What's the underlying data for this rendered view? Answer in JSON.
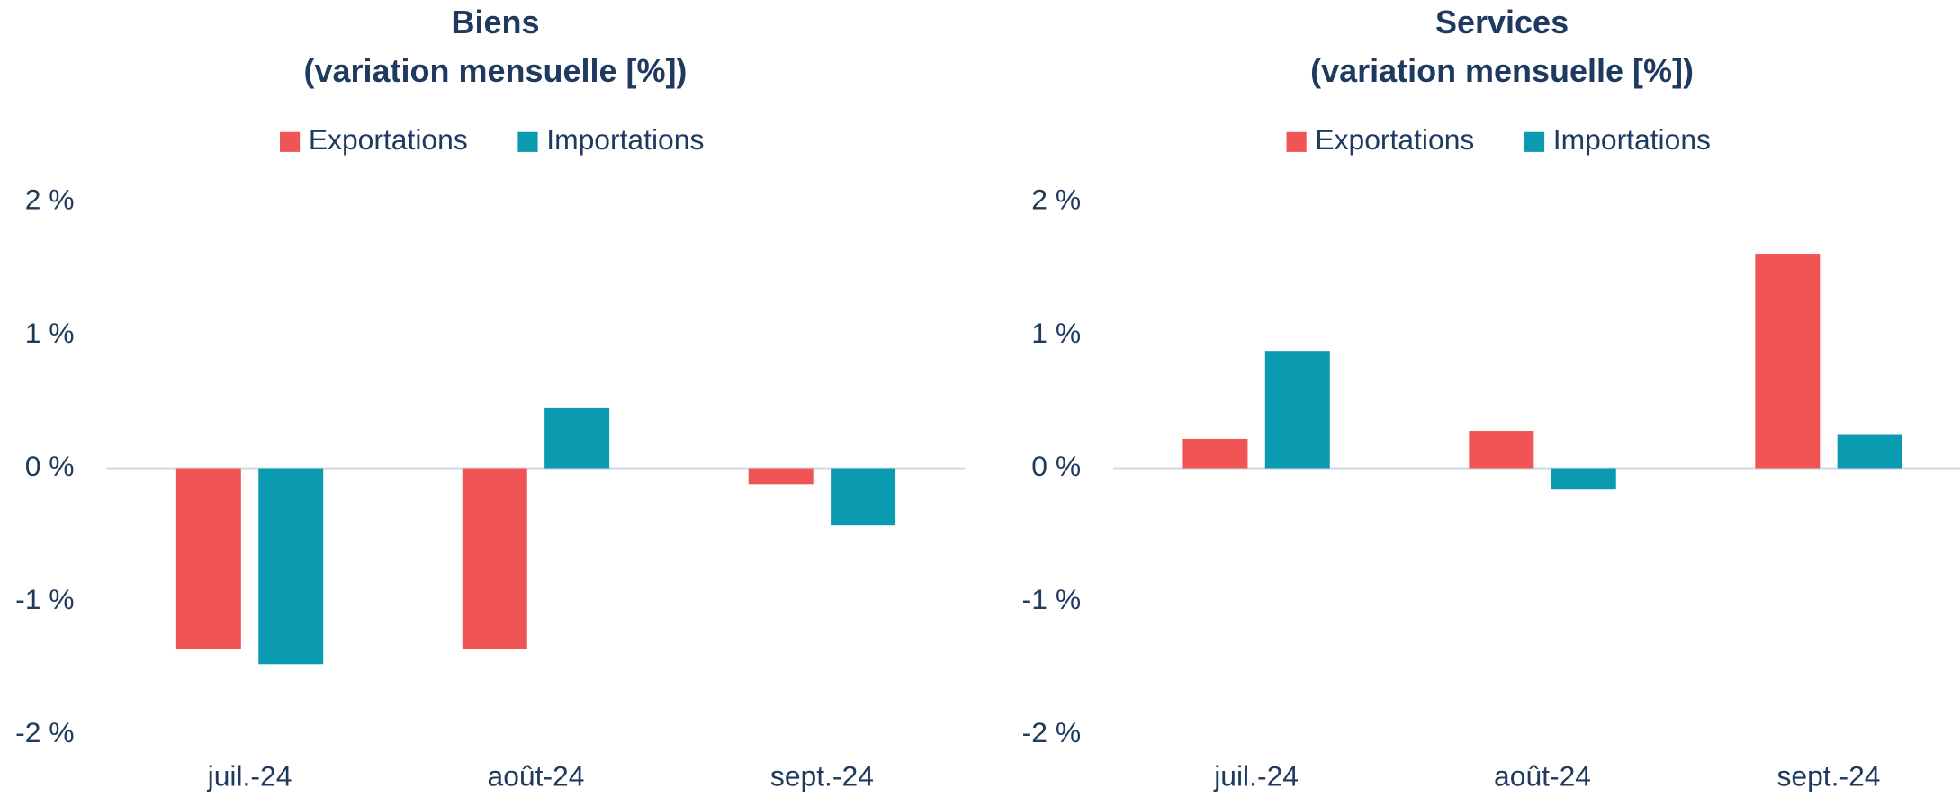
{
  "chart_data": [
    {
      "type": "bar",
      "title": "Biens",
      "subtitle": "(variation mensuelle [%])",
      "categories": [
        "juil.-24",
        "août-24",
        "sept.-24"
      ],
      "series": [
        {
          "name": "Exportations",
          "color": "#f05454",
          "values": [
            -1.36,
            -1.36,
            -0.12
          ]
        },
        {
          "name": "Importations",
          "color": "#0a9bb0",
          "values": [
            -1.47,
            0.45,
            -0.43
          ]
        }
      ],
      "ylim": [
        -2,
        2
      ],
      "yticks": [
        {
          "value": 2,
          "label": "2 %"
        },
        {
          "value": 1,
          "label": "1 %"
        },
        {
          "value": 0,
          "label": "0 %"
        },
        {
          "value": -1,
          "label": "-1 %"
        },
        {
          "value": -2,
          "label": "-2 %"
        }
      ],
      "legend": "top"
    },
    {
      "type": "bar",
      "title": "Services",
      "subtitle": "(variation mensuelle [%])",
      "categories": [
        "juil.-24",
        "août-24",
        "sept.-24"
      ],
      "series": [
        {
          "name": "Exportations",
          "color": "#f05454",
          "values": [
            0.22,
            0.28,
            1.61
          ]
        },
        {
          "name": "Importations",
          "color": "#0a9bb0",
          "values": [
            0.88,
            -0.16,
            0.25
          ]
        }
      ],
      "ylim": [
        -2,
        2
      ],
      "yticks": [
        {
          "value": 2,
          "label": "2 %"
        },
        {
          "value": 1,
          "label": "1 %"
        },
        {
          "value": 0,
          "label": "0 %"
        },
        {
          "value": -1,
          "label": "-1 %"
        },
        {
          "value": -2,
          "label": "-2 %"
        }
      ],
      "legend": "top"
    }
  ]
}
